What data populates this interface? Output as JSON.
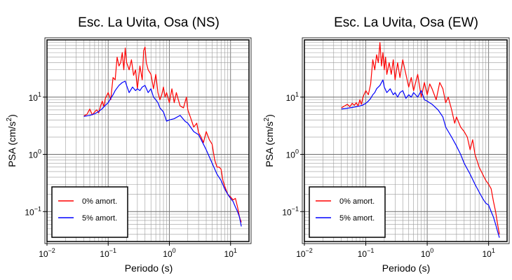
{
  "chart_data": [
    {
      "type": "line",
      "title": "Esc. La Uvita, Osa (NS)",
      "xlabel": "Periodo (s)",
      "ylabel_main": "PSA (cm/s",
      "ylabel_sup": "2",
      "ylabel_close": ")",
      "x_scale": "log",
      "y_scale": "log",
      "xlim": [
        0.01,
        20
      ],
      "ylim": [
        0.03,
        100
      ],
      "grid": true,
      "legend_position": "bottom-left",
      "x_ticks": [
        {
          "value": 0.01,
          "base": "10",
          "exp": "−2"
        },
        {
          "value": 0.1,
          "base": "10",
          "exp": "−1"
        },
        {
          "value": 1,
          "base": "10",
          "exp": "0"
        },
        {
          "value": 10,
          "base": "10",
          "exp": "1"
        }
      ],
      "y_ticks": [
        {
          "value": 0.1,
          "base": "10",
          "exp": "−1"
        },
        {
          "value": 1,
          "base": "10",
          "exp": "0"
        },
        {
          "value": 10,
          "base": "10",
          "exp": "1"
        }
      ],
      "series": [
        {
          "name": "0% amort.",
          "color": "#ff0000",
          "x": [
            0.04,
            0.045,
            0.05,
            0.055,
            0.06,
            0.065,
            0.07,
            0.075,
            0.08,
            0.085,
            0.09,
            0.1,
            0.11,
            0.12,
            0.13,
            0.14,
            0.15,
            0.16,
            0.17,
            0.18,
            0.19,
            0.2,
            0.21,
            0.22,
            0.24,
            0.26,
            0.28,
            0.3,
            0.33,
            0.36,
            0.38,
            0.4,
            0.42,
            0.45,
            0.5,
            0.55,
            0.6,
            0.65,
            0.7,
            0.75,
            0.8,
            0.85,
            0.9,
            1.0,
            1.1,
            1.2,
            1.3,
            1.4,
            1.5,
            1.7,
            1.9,
            2.0,
            2.2,
            2.5,
            2.8,
            3.0,
            3.3,
            3.6,
            4.0,
            4.5,
            5.0,
            5.5,
            6.0,
            6.5,
            7.0,
            7.5,
            8.0,
            9.0,
            10.0,
            11.0,
            12.0,
            13.0,
            14.0,
            15.0
          ],
          "y": [
            4.7,
            5.0,
            6.2,
            4.9,
            5.5,
            6.0,
            5.3,
            7.0,
            8.5,
            6.8,
            9.5,
            12.0,
            9.0,
            22.0,
            20.0,
            50.0,
            35.0,
            40.0,
            60.0,
            30.0,
            72.0,
            40.0,
            35.0,
            30.0,
            45.0,
            24.0,
            30.0,
            14.0,
            35.0,
            20.0,
            65.0,
            75.0,
            40.0,
            30.0,
            25.0,
            14.0,
            25.0,
            12.0,
            9.0,
            11.0,
            15.0,
            10.0,
            12.0,
            8.0,
            14.0,
            8.0,
            12.0,
            9.0,
            7.0,
            6.5,
            10.0,
            6.0,
            4.5,
            3.0,
            3.5,
            2.4,
            2.0,
            1.6,
            2.5,
            1.8,
            1.5,
            0.8,
            0.6,
            0.6,
            0.55,
            0.35,
            0.28,
            0.2,
            0.18,
            0.16,
            0.17,
            0.12,
            0.08,
            0.065
          ]
        },
        {
          "name": "5% amort.",
          "color": "#0000ff",
          "x": [
            0.04,
            0.05,
            0.06,
            0.07,
            0.08,
            0.09,
            0.1,
            0.11,
            0.12,
            0.13,
            0.14,
            0.15,
            0.17,
            0.19,
            0.2,
            0.22,
            0.25,
            0.28,
            0.3,
            0.33,
            0.36,
            0.4,
            0.45,
            0.5,
            0.55,
            0.6,
            0.65,
            0.7,
            0.8,
            0.9,
            1.0,
            1.2,
            1.5,
            1.8,
            2.0,
            2.5,
            3.0,
            3.5,
            4.0,
            5.0,
            6.0,
            7.0,
            8.0,
            9.0,
            10.0,
            11.0,
            12.0,
            13.0,
            14.0,
            15.0
          ],
          "y": [
            4.6,
            4.8,
            5.1,
            5.6,
            6.3,
            7.2,
            8.0,
            9.5,
            11.0,
            13.0,
            14.5,
            16.0,
            18.0,
            19.0,
            16.0,
            12.0,
            15.0,
            13.0,
            14.0,
            13.0,
            15.0,
            16.0,
            12.0,
            14.0,
            10.0,
            9.0,
            8.0,
            6.5,
            5.5,
            3.8,
            4.0,
            4.2,
            4.8,
            3.8,
            3.5,
            2.5,
            2.2,
            1.6,
            1.2,
            0.7,
            0.45,
            0.35,
            0.25,
            0.2,
            0.17,
            0.15,
            0.12,
            0.1,
            0.08,
            0.055
          ]
        }
      ]
    },
    {
      "type": "line",
      "title": "Esc. La Uvita, Osa (EW)",
      "xlabel": "Periodo (s)",
      "ylabel_main": "PSA (cm/s",
      "ylabel_sup": "2",
      "ylabel_close": ")",
      "x_scale": "log",
      "y_scale": "log",
      "xlim": [
        0.01,
        20
      ],
      "ylim": [
        0.03,
        100
      ],
      "grid": true,
      "legend_position": "bottom-left",
      "x_ticks": [
        {
          "value": 0.01,
          "base": "10",
          "exp": "−2"
        },
        {
          "value": 0.1,
          "base": "10",
          "exp": "−1"
        },
        {
          "value": 1,
          "base": "10",
          "exp": "0"
        },
        {
          "value": 10,
          "base": "10",
          "exp": "1"
        }
      ],
      "y_ticks": [
        {
          "value": 0.1,
          "base": "10",
          "exp": "−1"
        },
        {
          "value": 1,
          "base": "10",
          "exp": "0"
        },
        {
          "value": 10,
          "base": "10",
          "exp": "1"
        }
      ],
      "series": [
        {
          "name": "0% amort.",
          "color": "#ff0000",
          "x": [
            0.04,
            0.045,
            0.05,
            0.055,
            0.06,
            0.065,
            0.07,
            0.075,
            0.08,
            0.085,
            0.09,
            0.1,
            0.11,
            0.12,
            0.13,
            0.14,
            0.15,
            0.16,
            0.17,
            0.18,
            0.19,
            0.2,
            0.21,
            0.22,
            0.24,
            0.26,
            0.28,
            0.3,
            0.33,
            0.36,
            0.4,
            0.45,
            0.5,
            0.55,
            0.6,
            0.7,
            0.8,
            0.9,
            1.0,
            1.1,
            1.2,
            1.4,
            1.6,
            1.8,
            2.0,
            2.2,
            2.5,
            2.8,
            3.0,
            3.5,
            4.0,
            4.5,
            5.0,
            5.5,
            6.0,
            7.0,
            8.0,
            9.0,
            10.0,
            11.0,
            12.0,
            13.0,
            14.0,
            15.0
          ],
          "y": [
            6.5,
            7.0,
            7.5,
            6.8,
            7.8,
            7.2,
            8.0,
            7.0,
            9.0,
            7.5,
            10.0,
            13.0,
            11.0,
            17.0,
            45.0,
            30.0,
            55.0,
            40.0,
            90.0,
            35.0,
            60.0,
            30.0,
            50.0,
            25.0,
            40.0,
            25.0,
            45.0,
            20.0,
            40.0,
            22.0,
            45.0,
            25.0,
            15.0,
            22.0,
            13.0,
            25.0,
            10.0,
            18.0,
            11.0,
            17.0,
            14.0,
            9.0,
            18.0,
            14.0,
            8.0,
            10.0,
            6.0,
            3.5,
            4.5,
            3.0,
            2.5,
            2.0,
            1.2,
            1.8,
            1.0,
            0.6,
            0.45,
            0.35,
            0.3,
            0.25,
            0.15,
            0.1,
            0.06,
            0.04
          ]
        },
        {
          "name": "5% amort.",
          "color": "#0000ff",
          "x": [
            0.04,
            0.05,
            0.06,
            0.07,
            0.08,
            0.09,
            0.1,
            0.11,
            0.12,
            0.13,
            0.14,
            0.15,
            0.17,
            0.19,
            0.2,
            0.22,
            0.25,
            0.28,
            0.3,
            0.33,
            0.36,
            0.4,
            0.45,
            0.5,
            0.55,
            0.6,
            0.7,
            0.8,
            0.9,
            1.0,
            1.2,
            1.5,
            1.8,
            2.0,
            2.5,
            3.0,
            3.5,
            4.0,
            5.0,
            6.0,
            7.0,
            8.0,
            9.0,
            10.0,
            11.0,
            12.0,
            13.0,
            14.0,
            15.0
          ],
          "y": [
            6.2,
            6.4,
            6.6,
            6.8,
            7.0,
            7.3,
            7.8,
            8.5,
            9.5,
            11.0,
            12.0,
            14.0,
            16.0,
            20.0,
            15.0,
            12.0,
            14.0,
            11.0,
            12.0,
            10.0,
            12.0,
            13.0,
            9.5,
            11.0,
            10.0,
            12.0,
            10.0,
            13.0,
            9.0,
            8.5,
            7.5,
            6.0,
            4.5,
            3.0,
            2.0,
            1.4,
            1.0,
            0.7,
            0.45,
            0.3,
            0.22,
            0.17,
            0.14,
            0.13,
            0.1,
            0.08,
            0.06,
            0.045,
            0.035
          ]
        }
      ]
    }
  ]
}
